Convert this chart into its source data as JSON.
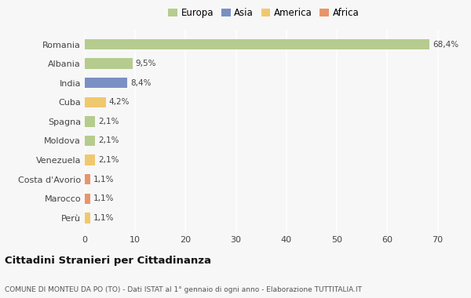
{
  "countries": [
    "Romania",
    "Albania",
    "India",
    "Cuba",
    "Spagna",
    "Moldova",
    "Venezuela",
    "Costa d'Avorio",
    "Marocco",
    "Perù"
  ],
  "values": [
    68.4,
    9.5,
    8.4,
    4.2,
    2.1,
    2.1,
    2.1,
    1.1,
    1.1,
    1.1
  ],
  "colors": [
    "#b5cc8e",
    "#b5cc8e",
    "#7a8fc4",
    "#f0c96e",
    "#b5cc8e",
    "#b5cc8e",
    "#f0c96e",
    "#e8956a",
    "#e8956a",
    "#f0c96e"
  ],
  "labels": [
    "68,4%",
    "9,5%",
    "8,4%",
    "4,2%",
    "2,1%",
    "2,1%",
    "2,1%",
    "1,1%",
    "1,1%",
    "1,1%"
  ],
  "legend_labels": [
    "Europa",
    "Asia",
    "America",
    "Africa"
  ],
  "legend_colors": [
    "#b5cc8e",
    "#7a8fc4",
    "#f0c96e",
    "#e8956a"
  ],
  "xlim": [
    0,
    71
  ],
  "xticks": [
    0,
    10,
    20,
    30,
    40,
    50,
    60,
    70
  ],
  "title": "Cittadini Stranieri per Cittadinanza",
  "subtitle": "COMUNE DI MONTEU DA PO (TO) - Dati ISTAT al 1° gennaio di ogni anno - Elaborazione TUTTITALIA.IT",
  "bg_color": "#f7f7f7",
  "grid_color": "#ffffff",
  "bar_height": 0.55
}
